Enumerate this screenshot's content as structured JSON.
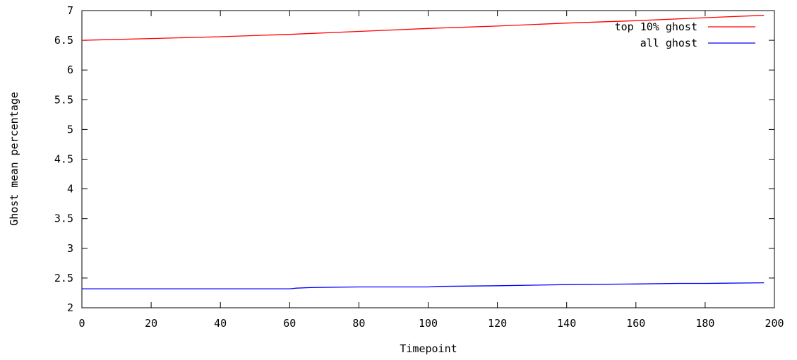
{
  "chart_data": {
    "type": "line",
    "title": "",
    "xlabel": "Timepoint",
    "ylabel": "Ghost mean percentage",
    "xlim": [
      0,
      200
    ],
    "ylim": [
      2,
      7
    ],
    "x_ticks": [
      0,
      20,
      40,
      60,
      80,
      100,
      120,
      140,
      160,
      180,
      200
    ],
    "y_ticks": [
      2,
      2.5,
      3,
      3.5,
      4,
      4.5,
      5,
      5.5,
      6,
      6.5,
      7
    ],
    "x_tick_labels": [
      "0",
      "20",
      "40",
      "60",
      "80",
      "100",
      "120",
      "140",
      "160",
      "180",
      "200"
    ],
    "y_tick_labels": [
      "2",
      "2.5",
      "3",
      "3.5",
      "4",
      "4.5",
      "5",
      "5.5",
      "6",
      "6.5",
      "7"
    ],
    "grid": false,
    "legend_position": "top-right",
    "series": [
      {
        "name": "top 10% ghost",
        "color": "#ff0000",
        "x": [
          0,
          20,
          40,
          60,
          80,
          100,
          120,
          140,
          160,
          180,
          197
        ],
        "values": [
          6.5,
          6.53,
          6.56,
          6.6,
          6.65,
          6.7,
          6.74,
          6.79,
          6.83,
          6.88,
          6.92
        ]
      },
      {
        "name": "all ghost",
        "color": "#0000ff",
        "x": [
          0,
          20,
          40,
          60,
          62,
          66,
          80,
          100,
          103,
          120,
          140,
          160,
          172,
          180,
          197
        ],
        "values": [
          2.32,
          2.32,
          2.32,
          2.32,
          2.33,
          2.34,
          2.35,
          2.35,
          2.36,
          2.37,
          2.39,
          2.4,
          2.41,
          2.41,
          2.42
        ]
      }
    ]
  }
}
